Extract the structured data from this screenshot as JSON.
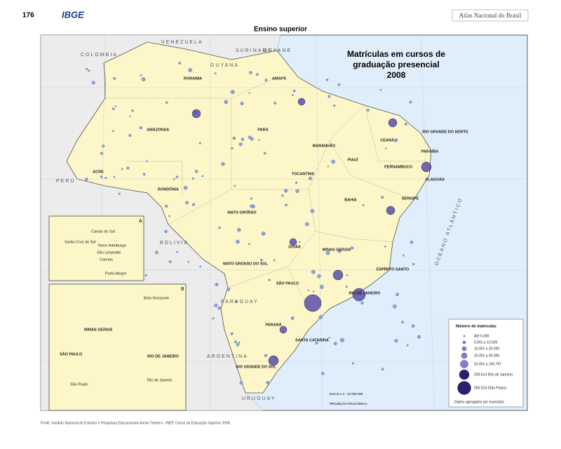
{
  "header": {
    "page_number": "176",
    "publisher": "IBGE",
    "atlas": "Atlas Nacional do Brasil",
    "section": "Ensino superior"
  },
  "map": {
    "title": [
      "Matrículas em cursos de",
      "graduação presencial",
      "2008"
    ],
    "countries": [
      "VENEZUELA",
      "COLOMBIA",
      "SURINAME",
      "GUYANE",
      "GUYANA",
      "PERU",
      "BOLIVIA",
      "PARAGUAY",
      "ARGENTINA",
      "URUGUAY"
    ],
    "states": [
      "RORAIMA",
      "AMAPÁ",
      "AMAZONAS",
      "PARÁ",
      "MARANHÃO",
      "CEARÁ",
      "RIO GRANDE DO NORTE",
      "PARAÍBA",
      "PERNAMBUCO",
      "ALAGOAS",
      "SERGIPE",
      "PIAUÍ",
      "BAHIA",
      "TOCANTINS",
      "ACRE",
      "RONDÔNIA",
      "MATO GROSSO",
      "GOIÁS",
      "MINAS GERAIS",
      "ESPÍRITO SANTO",
      "MATO GROSSO DO SUL",
      "SÃO PAULO",
      "RIO DE JANEIRO",
      "PARANÁ",
      "SANTA CATARINA",
      "RIO GRANDE DO SUL"
    ],
    "ocean": "OCEANO ATLÂNTICO",
    "inset_a": {
      "label": "A",
      "cities": [
        "Caxias do Sul",
        "Santa Cruz do Sul",
        "Novo Hamburgo",
        "São Leopoldo",
        "Canoas",
        "Porto Alegre"
      ]
    },
    "inset_b": {
      "label": "B",
      "labels": [
        "Belo Horizonte",
        "MINAS GERAIS",
        "SÃO PAULO",
        "RIO DE JANEIRO",
        "São Paulo",
        "Rio de Janeiro"
      ]
    },
    "scale": "ESCALA 1 : 10 000 000",
    "projection": "PROJEÇÃO POLICÔNICA",
    "legend": {
      "title": "Número de matrículas",
      "classes": [
        "Até 5.000",
        "5.001 a 10.000",
        "10.001 a 25.000",
        "25.001 a 50.000",
        "50.001 a 150.797",
        "269.614 (Rio de Janeiro)",
        "555.014 (São Paulo)"
      ],
      "note": "Dados agregados por município"
    }
  },
  "footer": {
    "source": "Fonte: Instituto Nacional de Estudos e Pesquisas Educacionais Anísio Teixeira - INEP, Censo da Educação Superior 2008."
  }
}
